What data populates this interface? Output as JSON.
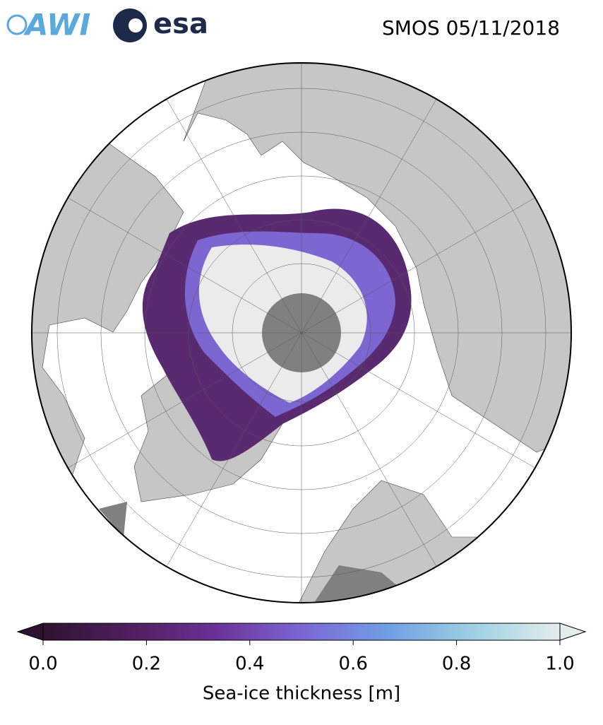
{
  "header": {
    "logo_left": "AWI",
    "logo_right": "esa",
    "title": "SMOS 05/11/2018"
  },
  "colorbar": {
    "label": "Sea-ice thickness [m]",
    "lim": [
      0,
      1
    ],
    "ticks": [
      {
        "value": 0,
        "label": "0.0"
      },
      {
        "value": 0.2,
        "label": "0.2"
      },
      {
        "value": 0.4,
        "label": "0.4"
      },
      {
        "value": 0.6,
        "label": "0.6"
      },
      {
        "value": 0.8,
        "label": "0.8"
      },
      {
        "value": 1,
        "label": "1.0"
      }
    ],
    "colors": [
      "#2e1330",
      "#4f1f5f",
      "#6a3197",
      "#7c66d2",
      "#6f9fe6",
      "#9fd0e2",
      "#e3eded"
    ]
  }
}
